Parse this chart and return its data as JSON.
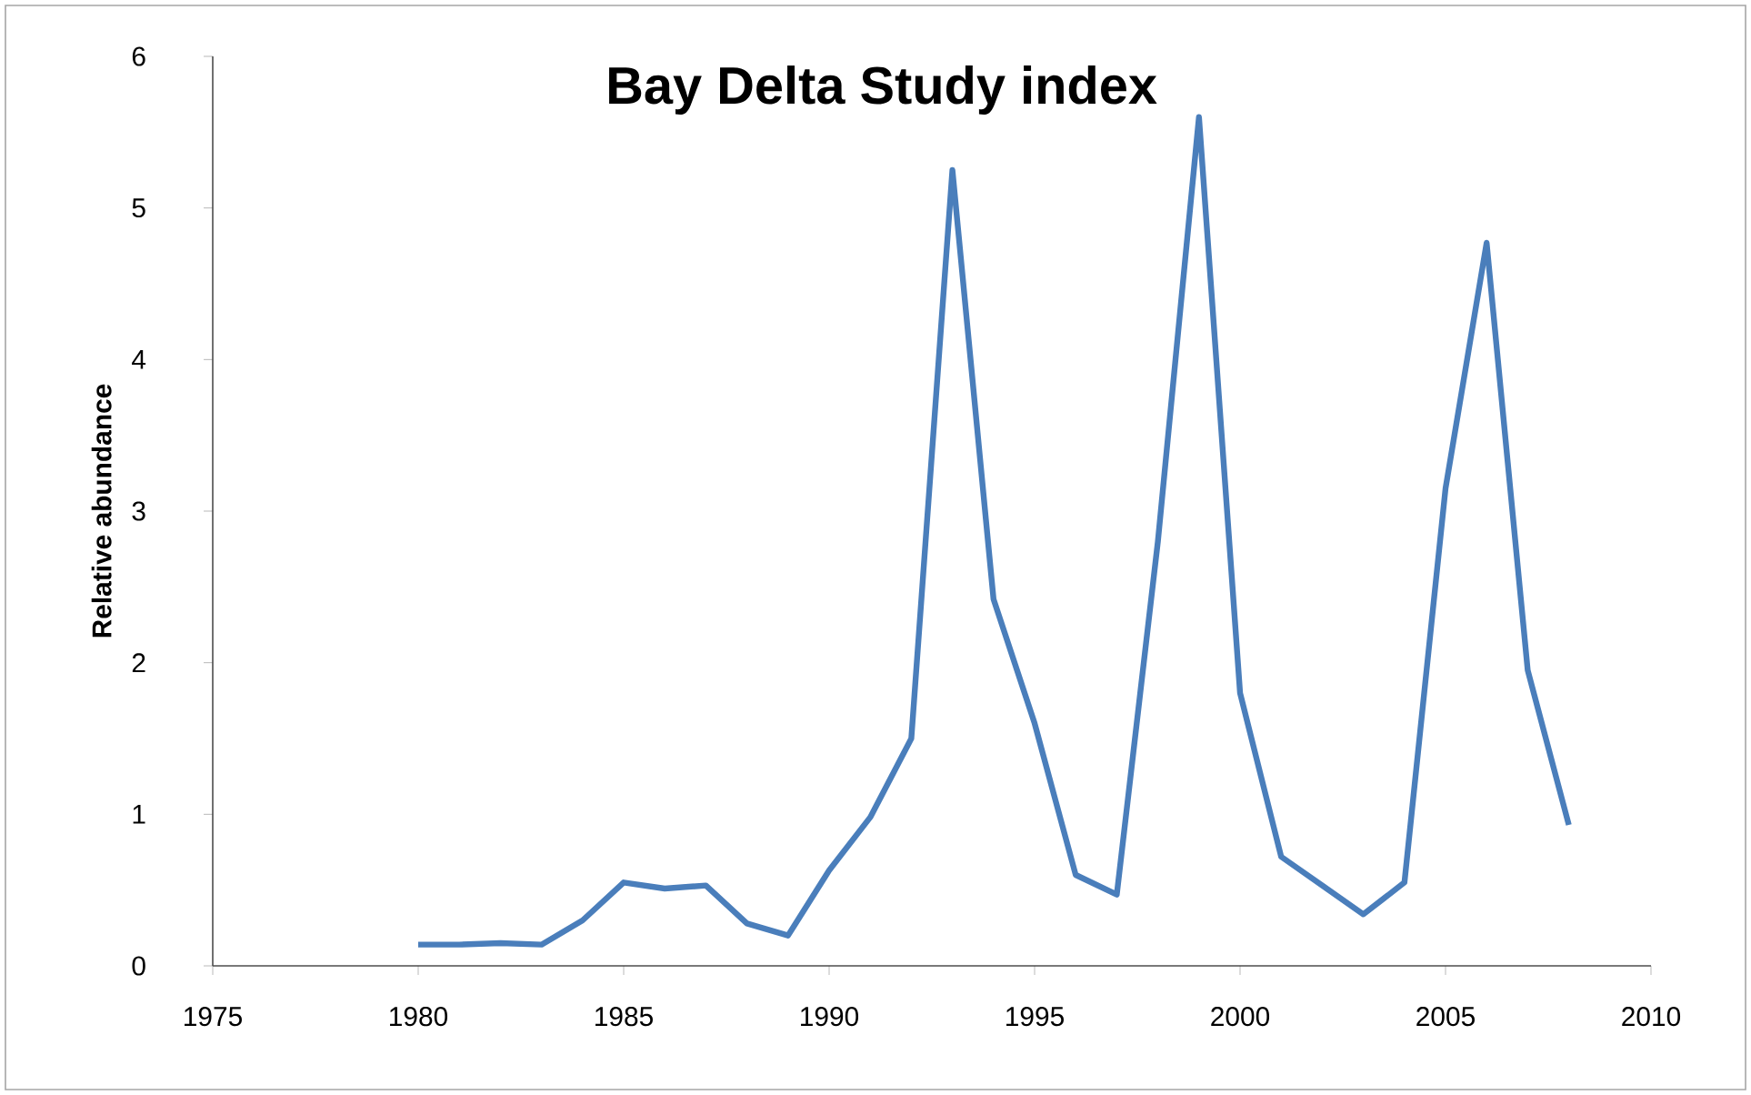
{
  "chart_data": {
    "type": "line",
    "title": "Bay Delta Study index",
    "ylabel": "Relative abundance",
    "x": [
      1980,
      1981,
      1982,
      1983,
      1984,
      1985,
      1986,
      1987,
      1988,
      1989,
      1990,
      1991,
      1992,
      1993,
      1994,
      1995,
      1996,
      1997,
      1998,
      1999,
      2000,
      2001,
      2002,
      2003,
      2004,
      2005,
      2006,
      2007,
      2008
    ],
    "series": [
      {
        "color": "#4a7ebb",
        "values": [
          0.14,
          0.14,
          0.15,
          0.14,
          0.3,
          0.55,
          0.51,
          0.53,
          0.28,
          0.2,
          0.63,
          0.98,
          1.5,
          5.25,
          2.42,
          1.6,
          0.6,
          0.47,
          2.8,
          5.6,
          1.8,
          0.72,
          0.53,
          0.34,
          0.55,
          3.15,
          4.77,
          1.95,
          0.93
        ]
      }
    ],
    "xlim": [
      1975,
      2010
    ],
    "xticks": [
      1975,
      1980,
      1985,
      1990,
      1995,
      2000,
      2005,
      2010
    ],
    "ylim": [
      0,
      6
    ],
    "yticks": [
      0,
      1,
      2,
      3,
      4,
      5,
      6
    ],
    "grid": false,
    "marker": "none",
    "line_style": "solid"
  }
}
